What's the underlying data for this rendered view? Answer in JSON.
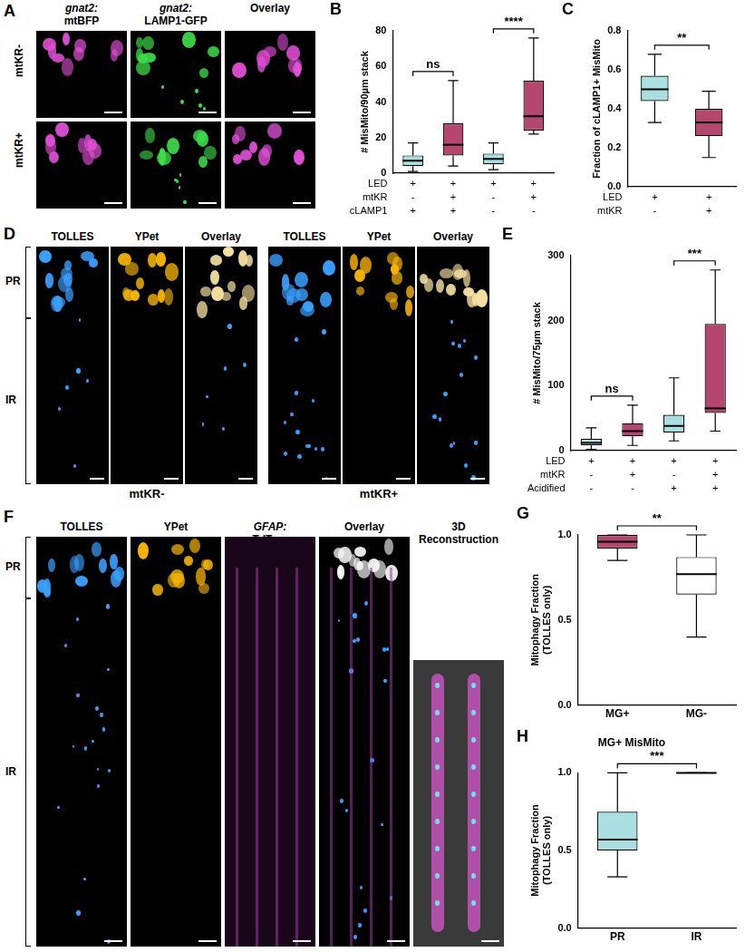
{
  "images": {
    "A": {
      "label": "A",
      "columns": [
        "gnat2: mtBFP",
        "gnat2: LAMP1-GFP",
        "Overlay"
      ],
      "rows": [
        "mtKR-",
        "mtKR+"
      ]
    },
    "D": {
      "label": "D",
      "groups": [
        {
          "name": "mtKR-",
          "columns": [
            "TOLLES",
            "YPet",
            "Overlay"
          ]
        },
        {
          "name": "mtKR+",
          "columns": [
            "TOLLES",
            "YPet",
            "Overlay"
          ]
        }
      ],
      "regions": [
        "PR",
        "IR"
      ]
    },
    "F": {
      "label": "F",
      "columns": [
        "TOLLES",
        "YPet",
        "GFAP: TdTom",
        "Overlay",
        "3D Reconstruction"
      ],
      "regions": [
        "PR",
        "IR"
      ]
    }
  },
  "chart_data": [
    {
      "panel": "B",
      "type": "box",
      "y_label": "# MisMito/90µm stack",
      "categories": null,
      "boxes": [
        {
          "min": 1,
          "q1": 4,
          "median": 7,
          "q3": 10,
          "max": 17
        },
        {
          "min": 4,
          "q1": 10,
          "median": 16,
          "q3": 28,
          "max": 52
        },
        {
          "min": 2,
          "q1": 5,
          "median": 8,
          "q3": 11,
          "max": 17
        },
        {
          "min": 22,
          "q1": 24,
          "median": 32,
          "q3": 52,
          "max": 76
        }
      ],
      "colors": [
        "#a9dfe0",
        "#b5466f",
        "#a9dfe0",
        "#b5466f"
      ],
      "ylim": [
        0,
        80
      ],
      "yticks": [
        0,
        20,
        40,
        60,
        80
      ],
      "grid": false,
      "condition_rows": [
        {
          "label": "LED",
          "values": [
            "+",
            "+",
            "+",
            "+"
          ]
        },
        {
          "label": "mtKR",
          "values": [
            "-",
            "+",
            "-",
            "+"
          ]
        },
        {
          "label": "cLAMP1",
          "values": [
            "+",
            "+",
            "-",
            "-"
          ]
        }
      ],
      "annotations": [
        {
          "pairs": [
            0,
            1
          ],
          "text": "ns"
        },
        {
          "pairs": [
            2,
            3
          ],
          "text": "****"
        }
      ]
    },
    {
      "panel": "C",
      "type": "box",
      "y_label": "Fraction of cLAMP1+ MisMito",
      "categories": null,
      "boxes": [
        {
          "min": 0.33,
          "q1": 0.44,
          "median": 0.5,
          "q3": 0.57,
          "max": 0.68
        },
        {
          "min": 0.15,
          "q1": 0.26,
          "median": 0.33,
          "q3": 0.4,
          "max": 0.49
        }
      ],
      "colors": [
        "#a9dfe0",
        "#b5466f"
      ],
      "ylim": [
        0,
        0.8
      ],
      "yticks": [
        {
          "value": 0,
          "label": "0.0"
        },
        0.2,
        0.4,
        0.6,
        0.8
      ],
      "grid": false,
      "condition_rows": [
        {
          "label": "LED",
          "values": [
            "+",
            "+"
          ]
        },
        {
          "label": "mtKR",
          "values": [
            "-",
            "+"
          ]
        }
      ],
      "annotations": [
        {
          "pairs": [
            0,
            1
          ],
          "text": "**"
        }
      ]
    },
    {
      "panel": "E",
      "type": "box",
      "y_label": "# MisMito/75µm stack",
      "categories": null,
      "boxes": [
        {
          "min": 2,
          "q1": 8,
          "median": 12,
          "q3": 18,
          "max": 35
        },
        {
          "min": 8,
          "q1": 22,
          "median": 30,
          "q3": 42,
          "max": 70
        },
        {
          "min": 15,
          "q1": 28,
          "median": 38,
          "q3": 55,
          "max": 112
        },
        {
          "min": 30,
          "q1": 58,
          "median": 65,
          "q3": 195,
          "max": 278
        }
      ],
      "colors": [
        "#a9dfe0",
        "#b5466f",
        "#a9dfe0",
        "#b5466f"
      ],
      "ylim": [
        0,
        300
      ],
      "yticks": [
        0,
        100,
        200,
        300
      ],
      "grid": false,
      "condition_rows": [
        {
          "label": "LED",
          "values": [
            "+",
            "+",
            "+",
            "+"
          ]
        },
        {
          "label": "mtKR",
          "values": [
            "-",
            "+",
            "-",
            "+"
          ]
        },
        {
          "label": "Acidified",
          "values": [
            "-",
            "-",
            "+",
            "+"
          ]
        }
      ],
      "annotations": [
        {
          "pairs": [
            0,
            1
          ],
          "text": "ns"
        },
        {
          "pairs": [
            2,
            3
          ],
          "text": "***"
        }
      ]
    },
    {
      "panel": "G",
      "type": "box",
      "y_label": [
        "Mitophagy Fraction",
        "(TOLLES only)"
      ],
      "categories": [
        "MG+",
        "MG-"
      ],
      "boxes": [
        {
          "min": 0.85,
          "q1": 0.92,
          "median": 0.96,
          "q3": 1.0,
          "max": 1.0
        },
        {
          "min": 0.4,
          "q1": 0.65,
          "median": 0.77,
          "q3": 0.87,
          "max": 1.0
        }
      ],
      "colors": [
        "#b5466f",
        "#ffffff"
      ],
      "ylim": [
        0,
        1
      ],
      "yticks": [
        {
          "value": 0,
          "label": "0.0"
        },
        0.5,
        {
          "value": 1,
          "label": "1.0"
        }
      ],
      "grid": false,
      "annotations": [
        {
          "pairs": [
            0,
            1
          ],
          "text": "**"
        }
      ]
    },
    {
      "panel": "H",
      "type": "box",
      "title": "MG+ MisMito",
      "y_label": [
        "Mitophagy Fraction",
        "(TOLLES only)"
      ],
      "categories": [
        "PR",
        "IR"
      ],
      "boxes": [
        {
          "min": 0.33,
          "q1": 0.5,
          "median": 0.57,
          "q3": 0.75,
          "max": 1.0
        },
        {
          "min": 1.0,
          "q1": 1.0,
          "median": 1.0,
          "q3": 1.0,
          "max": 1.0
        }
      ],
      "colors": [
        "#a9dfe0",
        "#ffffff"
      ],
      "ylim": [
        0,
        1
      ],
      "yticks": [
        {
          "value": 0,
          "label": "0.0"
        },
        0.5,
        {
          "value": 1,
          "label": "1.0"
        }
      ],
      "grid": false,
      "annotations": [
        {
          "pairs": [
            0,
            1
          ],
          "text": "***"
        }
      ]
    }
  ]
}
